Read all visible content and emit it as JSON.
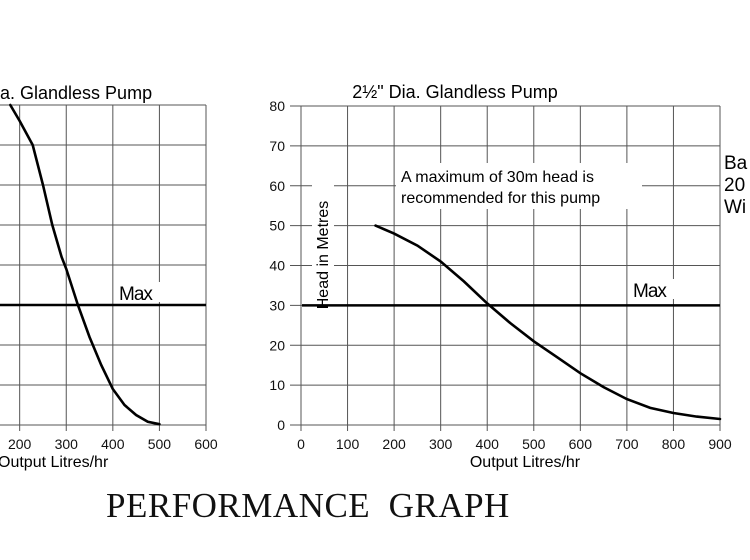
{
  "page": {
    "footer_title": "PERFORMANCE  GRAPH",
    "side_text": [
      "Ba",
      "20",
      "Wi"
    ]
  },
  "chart_data": [
    {
      "type": "line",
      "title": "ia. Glandless Pump",
      "xlabel": "Output Litres/hr",
      "ylabel": "",
      "xlim": [
        200,
        600
      ],
      "ylim": [
        0,
        80
      ],
      "x_ticks": [
        200,
        300,
        400,
        500,
        600
      ],
      "y_ticks": [
        0,
        10,
        20,
        30,
        40,
        50,
        60,
        70,
        80
      ],
      "x_tick_labels": [
        "200",
        "300",
        "400",
        "500",
        "600"
      ],
      "grid": true,
      "series": [
        {
          "name": "pump-curve",
          "points": [
            [
              180,
              80
            ],
            [
              200,
              76
            ],
            [
              228,
              70
            ],
            [
              250,
              60
            ],
            [
              270,
              50
            ],
            [
              290,
              42
            ],
            [
              300,
              39
            ],
            [
              325,
              30
            ],
            [
              350,
              22
            ],
            [
              375,
              15
            ],
            [
              400,
              9
            ],
            [
              425,
              5
            ],
            [
              450,
              2.5
            ],
            [
              475,
              0.8
            ],
            [
              500,
              0.2
            ]
          ]
        }
      ],
      "reference_lines": [
        {
          "label": "Max",
          "y": 30
        }
      ]
    },
    {
      "type": "line",
      "title": "2½\" Dia. Glandless Pump",
      "xlabel": "Output Litres/hr",
      "ylabel": "Head in Metres",
      "xlim": [
        0,
        900
      ],
      "ylim": [
        0,
        80
      ],
      "x_ticks": [
        0,
        100,
        200,
        300,
        400,
        500,
        600,
        700,
        800,
        900
      ],
      "y_ticks": [
        0,
        10,
        20,
        30,
        40,
        50,
        60,
        70,
        80
      ],
      "x_tick_labels": [
        "0",
        "100",
        "200",
        "300",
        "400",
        "500",
        "600",
        "700",
        "800",
        "900"
      ],
      "y_tick_labels": [
        "0",
        "10",
        "20",
        "30",
        "40",
        "50",
        "60",
        "70",
        "80"
      ],
      "grid": true,
      "annotation": [
        "A maximum of 30m head is",
        "recommended for this pump"
      ],
      "series": [
        {
          "name": "pump-curve",
          "points": [
            [
              160,
              50
            ],
            [
              200,
              48
            ],
            [
              250,
              45
            ],
            [
              300,
              41
            ],
            [
              350,
              36
            ],
            [
              400,
              30.5
            ],
            [
              450,
              25.5
            ],
            [
              500,
              21
            ],
            [
              550,
              17
            ],
            [
              600,
              13
            ],
            [
              650,
              9.5
            ],
            [
              700,
              6.5
            ],
            [
              750,
              4.3
            ],
            [
              800,
              3
            ],
            [
              850,
              2.1
            ],
            [
              900,
              1.5
            ]
          ]
        }
      ],
      "reference_lines": [
        {
          "label": "Max",
          "y": 30
        }
      ]
    }
  ]
}
